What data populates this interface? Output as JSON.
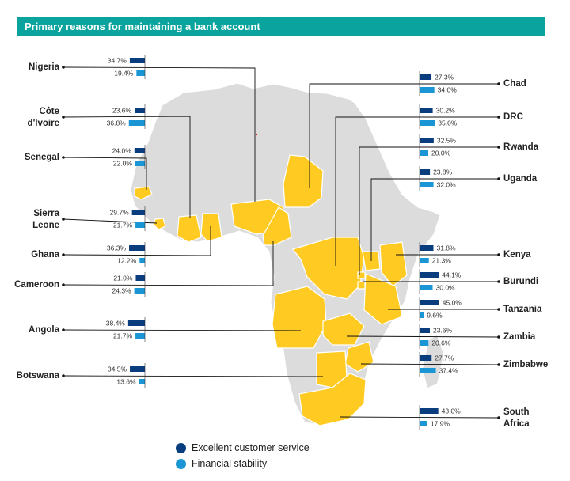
{
  "title": "Primary reasons for maintaining a bank account",
  "colors": {
    "title_bg": "#0aa39e",
    "excellent": "#0a3d7e",
    "financial": "#1a96d4",
    "highlight": "#ffcb22",
    "land": "#dcdcdc"
  },
  "legend": [
    {
      "label": "Excellent customer service",
      "color": "#0a3d7e"
    },
    {
      "label": "Financial stability",
      "color": "#1a96d4"
    }
  ],
  "chart_data": {
    "type": "bar",
    "title": "Primary reasons for maintaining a bank account",
    "unit": "%",
    "series_names": [
      "Excellent customer service",
      "Financial stability"
    ],
    "countries": [
      {
        "name": "Nigeria",
        "excellent": 34.7,
        "financial": 19.4,
        "side": "left"
      },
      {
        "name": "Côte d'Ivoire",
        "excellent": 23.6,
        "financial": 36.8,
        "side": "left"
      },
      {
        "name": "Senegal",
        "excellent": 24.0,
        "financial": 22.0,
        "side": "left"
      },
      {
        "name": "Sierra Leone",
        "excellent": 29.7,
        "financial": 21.7,
        "side": "left"
      },
      {
        "name": "Ghana",
        "excellent": 36.3,
        "financial": 12.2,
        "side": "left"
      },
      {
        "name": "Cameroon",
        "excellent": 21.0,
        "financial": 24.3,
        "side": "left"
      },
      {
        "name": "Angola",
        "excellent": 38.4,
        "financial": 21.7,
        "side": "left"
      },
      {
        "name": "Botswana",
        "excellent": 34.5,
        "financial": 13.6,
        "side": "left"
      },
      {
        "name": "Chad",
        "excellent": 27.3,
        "financial": 34.0,
        "side": "right"
      },
      {
        "name": "DRC",
        "excellent": 30.2,
        "financial": 35.0,
        "side": "right"
      },
      {
        "name": "Rwanda",
        "excellent": 32.5,
        "financial": 20.0,
        "side": "right"
      },
      {
        "name": "Uganda",
        "excellent": 23.8,
        "financial": 32.0,
        "side": "right"
      },
      {
        "name": "Kenya",
        "excellent": 31.8,
        "financial": 21.3,
        "side": "right"
      },
      {
        "name": "Burundi",
        "excellent": 44.1,
        "financial": 30.0,
        "side": "right"
      },
      {
        "name": "Tanzania",
        "excellent": 45.0,
        "financial": 9.6,
        "side": "right"
      },
      {
        "name": "Zambia",
        "excellent": 23.6,
        "financial": 20.6,
        "side": "right"
      },
      {
        "name": "Zimbabwe",
        "excellent": 27.7,
        "financial": 37.4,
        "side": "right"
      },
      {
        "name": "South Africa",
        "excellent": 43.0,
        "financial": 17.9,
        "side": "right"
      }
    ]
  }
}
